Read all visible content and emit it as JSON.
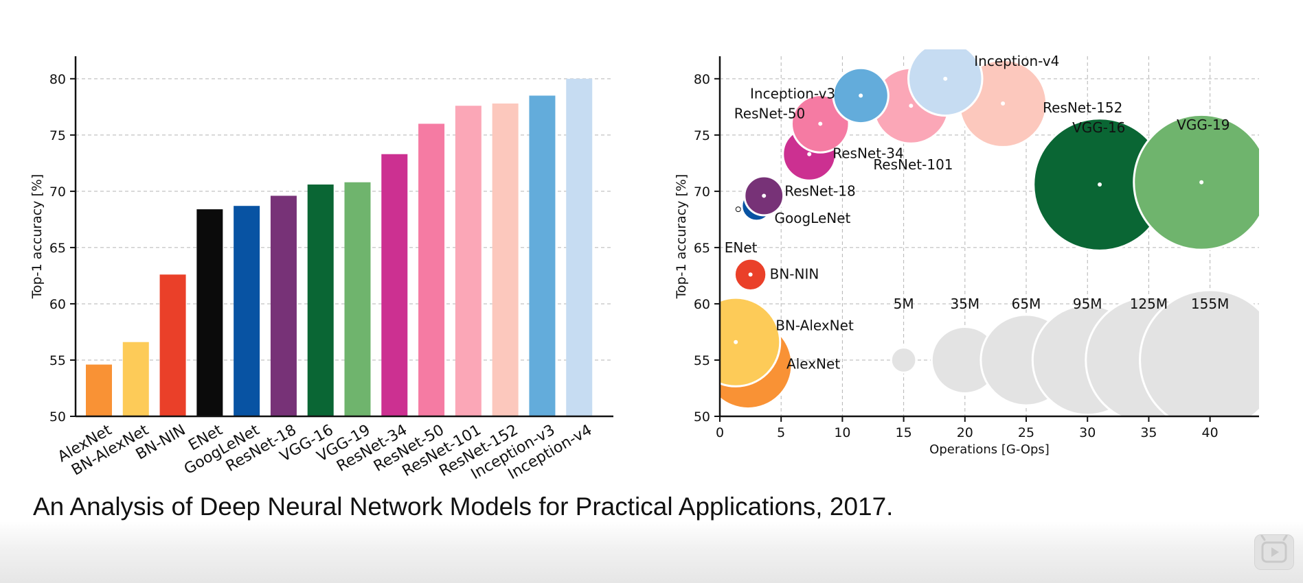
{
  "caption": "An Analysis of Deep Neural Network Models for Practical Applications, 2017.",
  "icons": {
    "player_button": "play-icon"
  },
  "chart_data": [
    {
      "type": "bar",
      "ylabel": "Top-1 accuracy [%]",
      "ylim": [
        50,
        82
      ],
      "yticks": [
        50,
        55,
        60,
        65,
        70,
        75,
        80
      ],
      "grid": true,
      "categories": [
        "AlexNet",
        "BN-AlexNet",
        "BN-NIN",
        "ENet",
        "GoogLeNet",
        "ResNet-18",
        "VGG-16",
        "VGG-19",
        "ResNet-34",
        "ResNet-50",
        "ResNet-101",
        "ResNet-152",
        "Inception-v3",
        "Inception-v4"
      ],
      "values": [
        54.6,
        56.6,
        62.6,
        68.4,
        68.7,
        69.6,
        70.6,
        70.8,
        73.3,
        76.0,
        77.6,
        77.8,
        78.5,
        80.0
      ],
      "colors": [
        "#f99235",
        "#fdcb58",
        "#ea4029",
        "#0b0b0b",
        "#0853a3",
        "#773277",
        "#0a6634",
        "#6fb46d",
        "#cc3091",
        "#f57ba3",
        "#fba7b7",
        "#fcc8bd",
        "#63acdb",
        "#c6dcf2"
      ]
    },
    {
      "type": "scatter",
      "xlabel": "Operations [G-Ops]",
      "ylabel": "Top-1 accuracy [%]",
      "xlim": [
        0,
        44
      ],
      "ylim": [
        50,
        82
      ],
      "xticks": [
        0,
        5,
        10,
        15,
        20,
        25,
        30,
        35,
        40
      ],
      "yticks": [
        50,
        55,
        60,
        65,
        70,
        75,
        80
      ],
      "grid": true,
      "points": [
        {
          "name": "AlexNet",
          "ops": 2.3,
          "accuracy": 54.6,
          "params_m": 61,
          "color": "#f99235"
        },
        {
          "name": "BN-AlexNet",
          "ops": 1.3,
          "accuracy": 56.6,
          "params_m": 62,
          "color": "#fdcb58"
        },
        {
          "name": "BN-NIN",
          "ops": 2.5,
          "accuracy": 62.6,
          "params_m": 8,
          "color": "#ea4029"
        },
        {
          "name": "ENet",
          "ops": 1.5,
          "accuracy": 68.4,
          "params_m": 0.4,
          "color": "#0b0b0b"
        },
        {
          "name": "GoogLeNet",
          "ops": 3.0,
          "accuracy": 68.7,
          "params_m": 7,
          "color": "#0853a3"
        },
        {
          "name": "ResNet-18",
          "ops": 3.6,
          "accuracy": 69.6,
          "params_m": 12,
          "color": "#773277"
        },
        {
          "name": "VGG-16",
          "ops": 31.0,
          "accuracy": 70.6,
          "params_m": 138,
          "color": "#0a6634"
        },
        {
          "name": "VGG-19",
          "ops": 39.3,
          "accuracy": 70.8,
          "params_m": 144,
          "color": "#6fb46d"
        },
        {
          "name": "ResNet-34",
          "ops": 7.3,
          "accuracy": 73.3,
          "params_m": 22,
          "color": "#cc3091"
        },
        {
          "name": "ResNet-50",
          "ops": 8.2,
          "accuracy": 76.0,
          "params_m": 26,
          "color": "#f57ba3"
        },
        {
          "name": "ResNet-101",
          "ops": 15.6,
          "accuracy": 77.6,
          "params_m": 45,
          "color": "#fba7b7"
        },
        {
          "name": "ResNet-152",
          "ops": 23.1,
          "accuracy": 77.8,
          "params_m": 60,
          "color": "#fcc8bd"
        },
        {
          "name": "Inception-v3",
          "ops": 11.5,
          "accuracy": 78.5,
          "params_m": 24,
          "color": "#63acdb"
        },
        {
          "name": "Inception-v4",
          "ops": 18.4,
          "accuracy": 80.0,
          "params_m": 43,
          "color": "#c6dcf2"
        }
      ],
      "size_legend": [
        {
          "label": "5M",
          "params_m": 5,
          "ops": 15,
          "accuracy": 55
        },
        {
          "label": "35M",
          "params_m": 35,
          "ops": 20,
          "accuracy": 55
        },
        {
          "label": "65M",
          "params_m": 65,
          "ops": 25,
          "accuracy": 55
        },
        {
          "label": "95M",
          "params_m": 95,
          "ops": 30,
          "accuracy": 55
        },
        {
          "label": "125M",
          "params_m": 125,
          "ops": 35,
          "accuracy": 55
        },
        {
          "label": "155M",
          "params_m": 155,
          "ops": 40,
          "accuracy": 55
        }
      ],
      "size_legend_color": "#e3e3e3"
    }
  ]
}
